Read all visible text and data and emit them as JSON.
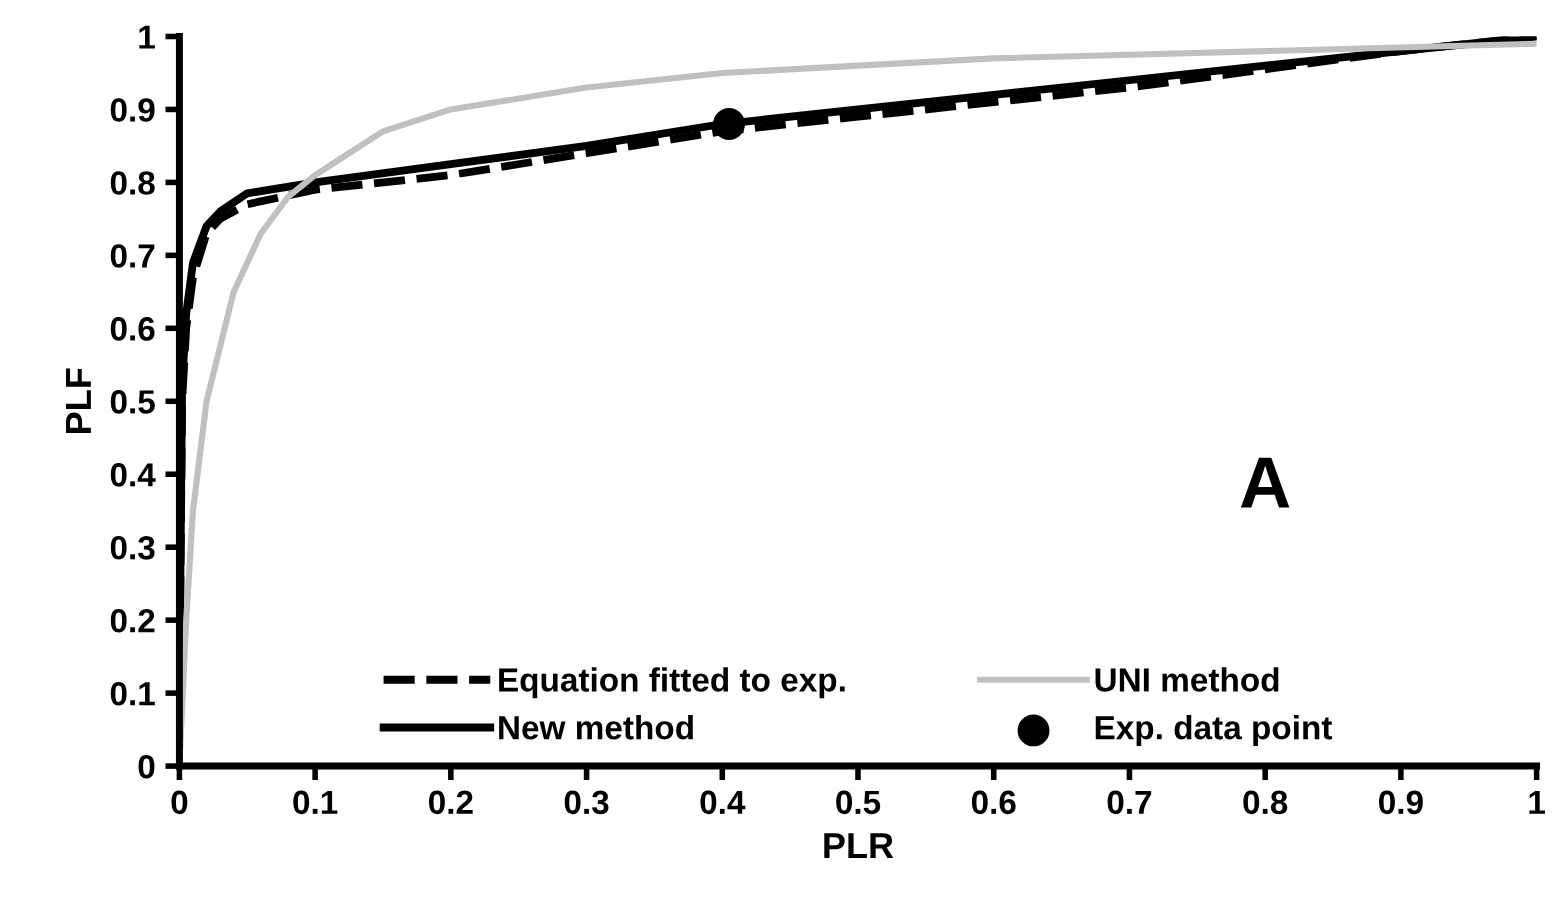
{
  "chart_data": {
    "type": "line",
    "xlabel": "PLR",
    "ylabel": "PLF",
    "xlim": [
      0,
      1
    ],
    "ylim": [
      0,
      1
    ],
    "xticks": [
      0,
      0.1,
      0.2,
      0.3,
      0.4,
      0.5,
      0.6,
      0.7,
      0.8,
      0.9,
      1
    ],
    "yticks": [
      0,
      0.1,
      0.2,
      0.3,
      0.4,
      0.5,
      0.6,
      0.7,
      0.8,
      0.9,
      1
    ],
    "grid": false,
    "legend": "bottom",
    "annotations": [
      "A"
    ],
    "series": [
      {
        "name": "Equation fitted to exp.",
        "color": "#000000",
        "line_style": "dashed",
        "x": [
          0,
          0.002,
          0.005,
          0.01,
          0.02,
          0.03,
          0.05,
          0.1,
          0.2,
          0.3,
          0.4,
          0.5,
          0.6,
          0.7,
          0.8,
          0.9,
          1
        ],
        "values": [
          0.1,
          0.5,
          0.6,
          0.67,
          0.73,
          0.75,
          0.77,
          0.79,
          0.81,
          0.84,
          0.87,
          0.89,
          0.91,
          0.93,
          0.955,
          0.98,
          1
        ]
      },
      {
        "name": "New method",
        "color": "#000000",
        "line_style": "solid",
        "x": [
          0,
          0.002,
          0.005,
          0.01,
          0.02,
          0.03,
          0.05,
          0.1,
          0.2,
          0.3,
          0.4,
          0.5,
          0.6,
          0.7,
          0.8,
          0.9,
          1
        ],
        "values": [
          0.1,
          0.52,
          0.62,
          0.69,
          0.74,
          0.76,
          0.785,
          0.8,
          0.825,
          0.85,
          0.88,
          0.9,
          0.92,
          0.94,
          0.96,
          0.98,
          1
        ]
      },
      {
        "name": "UNI method",
        "color": "#c0c0c0",
        "line_style": "solid",
        "x": [
          0,
          0.005,
          0.01,
          0.02,
          0.04,
          0.06,
          0.08,
          0.1,
          0.15,
          0.2,
          0.3,
          0.4,
          0.5,
          0.6,
          0.8,
          1
        ],
        "values": [
          0,
          0.2,
          0.35,
          0.5,
          0.65,
          0.73,
          0.78,
          0.81,
          0.87,
          0.9,
          0.93,
          0.95,
          0.96,
          0.97,
          0.98,
          0.99
        ]
      },
      {
        "name": "Exp. data point",
        "type": "scatter",
        "marker": "circle",
        "color": "#000000",
        "x": [
          0.405
        ],
        "values": [
          0.88
        ]
      }
    ]
  }
}
